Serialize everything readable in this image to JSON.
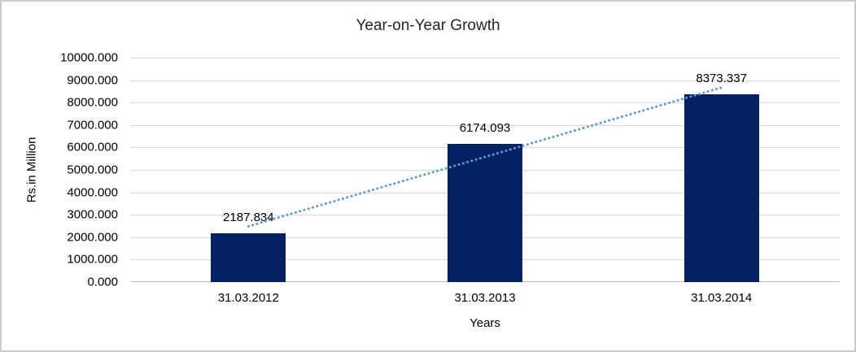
{
  "chart_data": {
    "type": "bar",
    "title": "Year-on-Year Growth",
    "xlabel": "Years",
    "ylabel": "Rs.in Million",
    "categories": [
      "31.03.2012",
      "31.03.2013",
      "31.03.2014"
    ],
    "values": [
      2187.834,
      6174.093,
      8373.337
    ],
    "data_labels": [
      "2187.834",
      "6174.093",
      "8373.337"
    ],
    "ylim": [
      0,
      10000
    ],
    "ytick_step": 1000,
    "ytick_labels": [
      "0.000",
      "1000.000",
      "2000.000",
      "3000.000",
      "4000.000",
      "5000.000",
      "6000.000",
      "7000.000",
      "8000.000",
      "9000.000",
      "10000.000"
    ],
    "grid": true,
    "legend": "none",
    "trendline": {
      "type": "linear",
      "style": "dotted"
    },
    "colors": {
      "bar": "#032163",
      "trendline": "#5b9bd5",
      "gridline": "#d9d9d9",
      "axis_line": "#bfbfbf",
      "title_text": "#262626",
      "label_text": "#000000",
      "chart_border": "#cbcbcb",
      "background": "#ffffff"
    }
  }
}
